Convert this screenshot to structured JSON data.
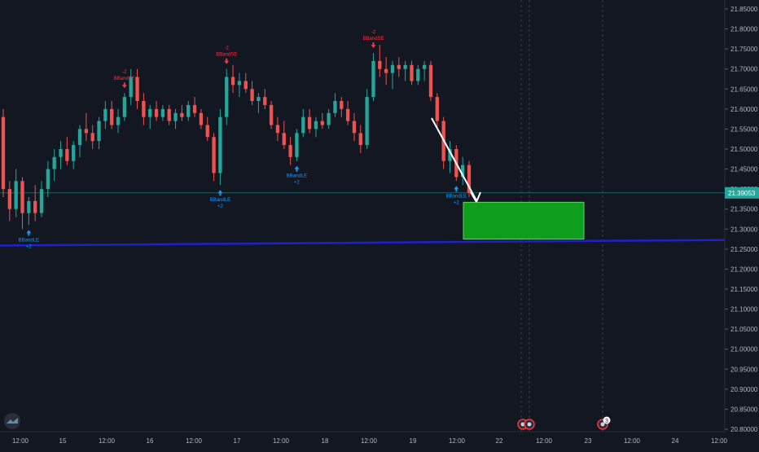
{
  "chart_data": {
    "type": "candlestick",
    "symbol_price_label": "21.39053",
    "colors": {
      "background": "#131722",
      "up": "#26a69a",
      "down": "#ef5350",
      "trendline": "#1e22c9",
      "zone_fill": "#0f9d1e",
      "zone_border": "#5bd65b",
      "arrow": "#ffffff",
      "price_line": "#26a69a",
      "signal_long": "#2196f3",
      "signal_short": "#f23645",
      "axis_text": "#b2b5be",
      "grid": "#1e222d"
    },
    "y_axis": {
      "range": [
        20.8,
        21.86
      ],
      "ticks": [
        "21.85000",
        "21.80000",
        "21.75000",
        "21.70000",
        "21.65000",
        "21.60000",
        "21.55000",
        "21.50000",
        "21.45000",
        "21.40000",
        "21.35000",
        "21.30000",
        "21.25000",
        "21.20000",
        "21.15000",
        "21.10000",
        "21.05000",
        "21.00000",
        "20.95000",
        "20.90000",
        "20.85000",
        "20.80000"
      ]
    },
    "x_axis": {
      "ticks": [
        "12:00",
        "15",
        "12:00",
        "16",
        "12:00",
        "17",
        "12:00",
        "18",
        "12:00",
        "19",
        "12:00",
        "22",
        "12:00",
        "23",
        "12:00",
        "24",
        "12:00"
      ]
    },
    "current_price": 21.39053,
    "trendline": {
      "start": 21.265,
      "end": 21.275
    },
    "target_zone": {
      "top": 21.367,
      "bottom": 21.275
    },
    "candles": [
      [
        21.58,
        21.6,
        21.38,
        21.4
      ],
      [
        21.4,
        21.42,
        21.32,
        21.35
      ],
      [
        21.35,
        21.45,
        21.33,
        21.42
      ],
      [
        21.42,
        21.43,
        21.3,
        21.34
      ],
      [
        21.34,
        21.38,
        21.31,
        21.37
      ],
      [
        21.37,
        21.41,
        21.32,
        21.34
      ],
      [
        21.34,
        21.42,
        21.33,
        21.4
      ],
      [
        21.4,
        21.47,
        21.38,
        21.45
      ],
      [
        21.45,
        21.5,
        21.42,
        21.48
      ],
      [
        21.48,
        21.52,
        21.45,
        21.5
      ],
      [
        21.5,
        21.53,
        21.46,
        21.47
      ],
      [
        21.47,
        21.52,
        21.45,
        21.51
      ],
      [
        21.51,
        21.56,
        21.48,
        21.55
      ],
      [
        21.55,
        21.59,
        21.52,
        21.54
      ],
      [
        21.54,
        21.56,
        21.5,
        21.52
      ],
      [
        21.52,
        21.58,
        21.5,
        21.57
      ],
      [
        21.57,
        21.62,
        21.55,
        21.6
      ],
      [
        21.6,
        21.62,
        21.55,
        21.56
      ],
      [
        21.56,
        21.6,
        21.54,
        21.58
      ],
      [
        21.58,
        21.64,
        21.57,
        21.63
      ],
      [
        21.63,
        21.7,
        21.61,
        21.68
      ],
      [
        21.68,
        21.7,
        21.6,
        21.62
      ],
      [
        21.62,
        21.64,
        21.56,
        21.58
      ],
      [
        21.58,
        21.61,
        21.55,
        21.6
      ],
      [
        21.6,
        21.62,
        21.57,
        21.58
      ],
      [
        21.58,
        21.61,
        21.57,
        21.6
      ],
      [
        21.6,
        21.61,
        21.56,
        21.57
      ],
      [
        21.57,
        21.6,
        21.55,
        21.59
      ],
      [
        21.59,
        21.61,
        21.57,
        21.58
      ],
      [
        21.58,
        21.62,
        21.57,
        21.61
      ],
      [
        21.61,
        21.63,
        21.58,
        21.59
      ],
      [
        21.59,
        21.6,
        21.55,
        21.56
      ],
      [
        21.56,
        21.58,
        21.52,
        21.53
      ],
      [
        21.53,
        21.54,
        21.42,
        21.44
      ],
      [
        21.44,
        21.6,
        21.41,
        21.58
      ],
      [
        21.58,
        21.7,
        21.56,
        21.68
      ],
      [
        21.68,
        21.71,
        21.64,
        21.66
      ],
      [
        21.66,
        21.69,
        21.63,
        21.67
      ],
      [
        21.67,
        21.69,
        21.64,
        21.65
      ],
      [
        21.65,
        21.67,
        21.61,
        21.62
      ],
      [
        21.62,
        21.64,
        21.59,
        21.63
      ],
      [
        21.63,
        21.65,
        21.6,
        21.61
      ],
      [
        21.61,
        21.62,
        21.55,
        21.56
      ],
      [
        21.56,
        21.58,
        21.52,
        21.54
      ],
      [
        21.54,
        21.57,
        21.5,
        21.51
      ],
      [
        21.51,
        21.53,
        21.46,
        21.48
      ],
      [
        21.48,
        21.55,
        21.47,
        21.54
      ],
      [
        21.54,
        21.6,
        21.53,
        21.58
      ],
      [
        21.58,
        21.6,
        21.54,
        21.55
      ],
      [
        21.55,
        21.58,
        21.53,
        21.57
      ],
      [
        21.57,
        21.59,
        21.55,
        21.56
      ],
      [
        21.56,
        21.6,
        21.55,
        21.59
      ],
      [
        21.59,
        21.64,
        21.58,
        21.62
      ],
      [
        21.62,
        21.63,
        21.58,
        21.6
      ],
      [
        21.6,
        21.62,
        21.56,
        21.57
      ],
      [
        21.57,
        21.59,
        21.52,
        21.54
      ],
      [
        21.54,
        21.56,
        21.49,
        21.51
      ],
      [
        21.51,
        21.65,
        21.5,
        21.63
      ],
      [
        21.63,
        21.74,
        21.62,
        21.72
      ],
      [
        21.72,
        21.76,
        21.68,
        21.7
      ],
      [
        21.7,
        21.73,
        21.66,
        21.69
      ],
      [
        21.69,
        21.72,
        21.65,
        21.71
      ],
      [
        21.71,
        21.73,
        21.68,
        21.7
      ],
      [
        21.7,
        21.72,
        21.67,
        21.71
      ],
      [
        21.71,
        21.72,
        21.66,
        21.67
      ],
      [
        21.67,
        21.71,
        21.66,
        21.7
      ],
      [
        21.7,
        21.72,
        21.67,
        21.71
      ],
      [
        21.71,
        21.72,
        21.62,
        21.63
      ],
      [
        21.63,
        21.64,
        21.55,
        21.57
      ],
      [
        21.57,
        21.58,
        21.45,
        21.47
      ],
      [
        21.47,
        21.52,
        21.44,
        21.5
      ],
      [
        21.5,
        21.51,
        21.42,
        21.43
      ],
      [
        21.43,
        21.48,
        21.41,
        21.46
      ],
      [
        21.46,
        21.47,
        21.38,
        21.39
      ]
    ],
    "signals": [
      {
        "label": "BBandLE",
        "qty": "+2",
        "dir": "long",
        "bar": 4
      },
      {
        "label": "BBandSE",
        "qty": "-2",
        "dir": "short",
        "bar": 19
      },
      {
        "label": "BBandSE",
        "qty": "-2",
        "dir": "short",
        "bar": 35
      },
      {
        "label": "BBandLE",
        "qty": "+2",
        "dir": "long",
        "bar": 34
      },
      {
        "label": "BBandLE",
        "qty": "+2",
        "dir": "long",
        "bar": 46
      },
      {
        "label": "BBandSE",
        "qty": "-2",
        "dir": "short",
        "bar": 58
      },
      {
        "label": "BBandLE",
        "qty": "+2",
        "dir": "long",
        "bar": 71
      }
    ],
    "event_badge_count": "3"
  }
}
